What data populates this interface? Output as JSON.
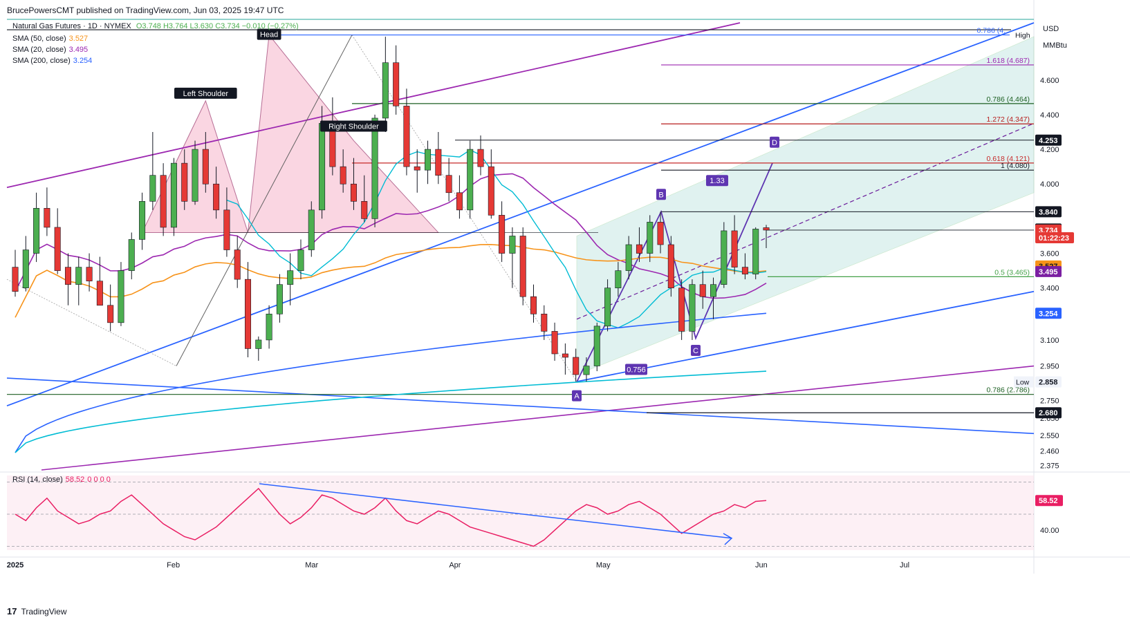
{
  "header": {
    "publisher": "BrucePowersCMT published on TradingView.com, Jun 03, 2025 19:47 UTC"
  },
  "symbol": {
    "name": "Natural Gas Futures · 1D · NYMEX",
    "ohlc": "O3.748  H3.764  L3.630  C3.734  −0.010 (−0.27%)"
  },
  "indicators": [
    {
      "label": "SMA (50, close)",
      "value": "3.527",
      "color": "#f7931a"
    },
    {
      "label": "SMA (20, close)",
      "value": "3.495",
      "color": "#9c27b0"
    },
    {
      "label": "SMA (200, close)",
      "value": "3.254",
      "color": "#2962ff"
    }
  ],
  "rsi_label": "RSI (14, close)",
  "rsi_value": "58.52",
  "rsi_extra": "0 0 0 0",
  "currency": "USD",
  "unit": "MMBtu",
  "branding": "TradingView",
  "colors": {
    "up": "#4caf50",
    "down": "#e53935",
    "sma50": "#f7931a",
    "sma20": "#9c27b0",
    "sma200": "#2962ff",
    "sma_cyan": "#00bcd4",
    "rsi": "#e91e63",
    "trend_blue": "#2962ff"
  },
  "chart_data": {
    "type": "candlestick",
    "x_labels": [
      "2025",
      "Feb",
      "Mar",
      "Apr",
      "May",
      "Jun",
      "Jul"
    ],
    "x_label_dates": [
      "2025-01-02",
      "2025-02-03",
      "2025-03-03",
      "2025-04-01",
      "2025-05-01",
      "2025-06-02",
      "2025-07-01"
    ],
    "price_ticks": [
      "4.600",
      "4.400",
      "4.200",
      "4.000",
      "3.600",
      "3.400",
      "3.100",
      "2.950",
      "2.750",
      "2.650",
      "2.550",
      "2.460",
      "2.375"
    ],
    "price_badges": [
      {
        "text": "4.253",
        "value": 4.253,
        "style": "dark"
      },
      {
        "text": "3.840",
        "value": 3.84,
        "style": "dark"
      },
      {
        "text": "3.740",
        "value": 3.74,
        "style": "dark"
      },
      {
        "text": "3.734",
        "value": 3.734,
        "style": "red"
      },
      {
        "text": "01:22:23",
        "value": 3.69,
        "style": "red"
      },
      {
        "text": "3.527",
        "value": 3.527,
        "style": "orange"
      },
      {
        "text": "3.495",
        "value": 3.495,
        "style": "purple"
      },
      {
        "text": "3.254",
        "value": 3.254,
        "style": "blue"
      },
      {
        "text": "2.858",
        "value": 2.858,
        "style": "light"
      },
      {
        "text": "2.680",
        "value": 2.68,
        "style": "dark"
      }
    ],
    "hi_lo": {
      "high_label": "High",
      "low_label": "Low",
      "low_value": "2.858"
    },
    "pattern_labels": [
      {
        "text": "Head",
        "date_index": 24,
        "value": 4.86
      },
      {
        "text": "Left Shoulder",
        "date_index": 18,
        "value": 4.52
      },
      {
        "text": "Right Shoulder",
        "date_index": 32,
        "value": 4.33
      }
    ],
    "harmonic_points": [
      {
        "text": "A",
        "value": 2.858
      },
      {
        "text": "B",
        "value": 3.84
      },
      {
        "text": "C",
        "value": 3.11
      },
      {
        "text": "D",
        "value": 4.121
      }
    ],
    "ratio_labels": [
      "1.33",
      "0.756"
    ],
    "fib_levels": [
      {
        "text": "1.618 (4.687)",
        "value": 4.687,
        "color": "#9c27b0"
      },
      {
        "text": "0.786 (4.464)",
        "value": 4.464,
        "color": "#1b5e20"
      },
      {
        "text": "1.272 (4.347)",
        "value": 4.347,
        "color": "#b71c1c"
      },
      {
        "text": "0.618 (4.121)",
        "value": 4.121,
        "color": "#c62828"
      },
      {
        "text": "1 (4.080)",
        "value": 4.08,
        "color": "#131722"
      },
      {
        "text": "0.5 (3.465)",
        "value": 3.465,
        "color": "#43a047"
      },
      {
        "text": "0.786 (2.786)",
        "value": 2.786,
        "color": "#1b5e20"
      },
      {
        "text": "0.786 (4.",
        "value": 4.86,
        "color": "#2962ff"
      }
    ],
    "rsi_tick": "40.00",
    "candles": [
      [
        3.52,
        3.62,
        3.35,
        3.38
      ],
      [
        3.4,
        3.7,
        3.38,
        3.62
      ],
      [
        3.6,
        3.95,
        3.55,
        3.86
      ],
      [
        3.86,
        3.98,
        3.7,
        3.75
      ],
      [
        3.75,
        3.86,
        3.48,
        3.5
      ],
      [
        3.52,
        3.6,
        3.3,
        3.42
      ],
      [
        3.42,
        3.58,
        3.3,
        3.52
      ],
      [
        3.52,
        3.6,
        3.38,
        3.44
      ],
      [
        3.44,
        3.58,
        3.32,
        3.3
      ],
      [
        3.3,
        3.42,
        3.15,
        3.2
      ],
      [
        3.2,
        3.55,
        3.18,
        3.5
      ],
      [
        3.5,
        3.72,
        3.45,
        3.68
      ],
      [
        3.68,
        3.95,
        3.62,
        3.9
      ],
      [
        3.9,
        4.3,
        3.85,
        4.05
      ],
      [
        4.05,
        4.12,
        3.7,
        3.75
      ],
      [
        3.75,
        4.15,
        3.7,
        4.12
      ],
      [
        4.12,
        4.2,
        3.85,
        3.9
      ],
      [
        3.9,
        4.25,
        3.88,
        4.2
      ],
      [
        4.2,
        4.3,
        3.95,
        4.0
      ],
      [
        4.0,
        4.1,
        3.8,
        3.85
      ],
      [
        3.85,
        3.98,
        3.58,
        3.62
      ],
      [
        3.62,
        3.7,
        3.4,
        3.45
      ],
      [
        3.45,
        3.55,
        3.0,
        3.05
      ],
      [
        3.05,
        3.12,
        2.98,
        3.1
      ],
      [
        3.1,
        3.3,
        3.05,
        3.25
      ],
      [
        3.25,
        3.48,
        3.2,
        3.42
      ],
      [
        3.42,
        3.6,
        3.3,
        3.5
      ],
      [
        3.5,
        3.68,
        3.45,
        3.62
      ],
      [
        3.62,
        3.9,
        3.58,
        3.85
      ],
      [
        3.85,
        4.45,
        3.8,
        4.35
      ],
      [
        4.35,
        4.5,
        4.05,
        4.1
      ],
      [
        4.1,
        4.2,
        3.95,
        4.0
      ],
      [
        4.0,
        4.15,
        3.85,
        3.9
      ],
      [
        3.9,
        4.05,
        3.78,
        3.8
      ],
      [
        3.8,
        4.4,
        3.75,
        4.38
      ],
      [
        4.38,
        4.85,
        4.3,
        4.7
      ],
      [
        4.7,
        4.8,
        4.4,
        4.45
      ],
      [
        4.45,
        4.55,
        4.05,
        4.1
      ],
      [
        4.1,
        4.2,
        3.95,
        4.08
      ],
      [
        4.08,
        4.25,
        4.0,
        4.2
      ],
      [
        4.2,
        4.3,
        4.0,
        4.05
      ],
      [
        4.05,
        4.15,
        3.9,
        3.95
      ],
      [
        3.95,
        4.05,
        3.8,
        3.85
      ],
      [
        3.85,
        4.25,
        3.8,
        4.2
      ],
      [
        4.2,
        4.28,
        4.05,
        4.1
      ],
      [
        4.1,
        4.2,
        3.8,
        3.82
      ],
      [
        3.82,
        3.9,
        3.55,
        3.6
      ],
      [
        3.6,
        3.75,
        3.4,
        3.7
      ],
      [
        3.7,
        3.75,
        3.3,
        3.35
      ],
      [
        3.35,
        3.42,
        3.2,
        3.25
      ],
      [
        3.25,
        3.3,
        3.1,
        3.15
      ],
      [
        3.15,
        3.2,
        2.98,
        3.02
      ],
      [
        3.02,
        3.08,
        2.9,
        3.0
      ],
      [
        3.0,
        3.05,
        2.86,
        2.9
      ],
      [
        2.9,
        3.0,
        2.86,
        2.95
      ],
      [
        2.95,
        3.2,
        2.92,
        3.18
      ],
      [
        3.18,
        3.45,
        3.15,
        3.4
      ],
      [
        3.4,
        3.55,
        3.35,
        3.5
      ],
      [
        3.5,
        3.7,
        3.45,
        3.65
      ],
      [
        3.65,
        3.75,
        3.55,
        3.6
      ],
      [
        3.6,
        3.82,
        3.55,
        3.78
      ],
      [
        3.78,
        3.84,
        3.6,
        3.65
      ],
      [
        3.65,
        3.7,
        3.35,
        3.4
      ],
      [
        3.4,
        3.45,
        3.1,
        3.15
      ],
      [
        3.15,
        3.45,
        3.1,
        3.42
      ],
      [
        3.42,
        3.5,
        3.28,
        3.35
      ],
      [
        3.35,
        3.46,
        3.22,
        3.42
      ],
      [
        3.42,
        3.78,
        3.4,
        3.73
      ],
      [
        3.73,
        3.82,
        3.48,
        3.52
      ],
      [
        3.52,
        3.6,
        3.45,
        3.48
      ],
      [
        3.48,
        3.75,
        3.45,
        3.74
      ],
      [
        3.748,
        3.764,
        3.63,
        3.734
      ]
    ],
    "rsi": [
      50,
      46,
      54,
      60,
      52,
      48,
      44,
      46,
      50,
      52,
      58,
      62,
      56,
      50,
      44,
      40,
      36,
      34,
      38,
      42,
      48,
      54,
      60,
      66,
      58,
      50,
      44,
      48,
      54,
      62,
      60,
      56,
      52,
      50,
      54,
      60,
      52,
      46,
      44,
      48,
      52,
      50,
      46,
      42,
      40,
      38,
      36,
      34,
      32,
      30,
      34,
      40,
      46,
      52,
      56,
      54,
      50,
      52,
      56,
      58,
      54,
      50,
      44,
      38,
      42,
      46,
      50,
      52,
      56,
      54,
      58,
      58.52
    ],
    "ylim": [
      2.35,
      4.95
    ]
  }
}
